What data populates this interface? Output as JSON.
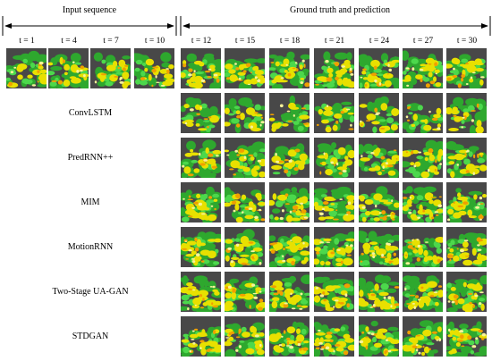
{
  "header": {
    "input_label": "Input sequence",
    "gt_label": "Ground truth and prediction"
  },
  "input_steps": [
    "t = 1",
    "t  = 4",
    "t = 7",
    "t = 10"
  ],
  "output_steps": [
    "t = 12",
    "t = 15",
    "t = 18",
    "t = 21",
    "t = 24",
    "t = 27",
    "t = 30"
  ],
  "models": [
    "ConvLSTM",
    "PredRNN++",
    "MIM",
    "MotionRNN",
    "Two-Stage UA-GAN",
    "STDGAN"
  ],
  "colors": {
    "background": "#484848",
    "green": "#2ea82e",
    "bright_green": "#4cd84c",
    "yellow": "#e8e000",
    "orange": "#f0a000",
    "light_yellow": "#f7f39a"
  }
}
